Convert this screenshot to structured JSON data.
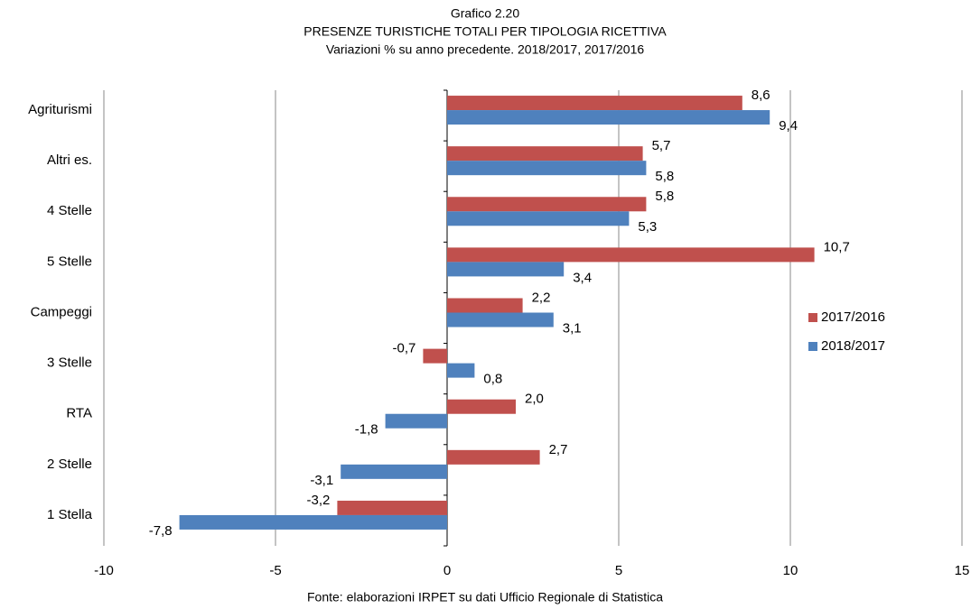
{
  "chart_data": {
    "type": "hbar",
    "chart_number": "Grafico 2.20",
    "title": "PRESENZE TURISTICHE TOTALI PER TIPOLOGIA RICETTIVA",
    "subtitle": "Variazioni % su anno precedente. 2018/2017, 2017/2016",
    "source": "Fonte: elaborazioni IRPET su dati Ufficio Regionale di Statistica",
    "categories": [
      "Agriturismi",
      "Altri es.",
      "4 Stelle",
      "5 Stelle",
      "Campeggi",
      "3 Stelle",
      "RTA",
      "2 Stelle",
      "1 Stella"
    ],
    "series": [
      {
        "name": "2017/2016",
        "color": "#c0504d",
        "values": [
          8.6,
          5.7,
          5.8,
          10.7,
          2.2,
          -0.7,
          2.0,
          2.7,
          -3.2
        ],
        "value_labels": [
          "8,6",
          "5,7",
          "5,8",
          "10,7",
          "2,2",
          "-0,7",
          "2,0",
          "2,7",
          "-3,2"
        ]
      },
      {
        "name": "2018/2017",
        "color": "#4f81bd",
        "values": [
          9.4,
          5.8,
          5.3,
          3.4,
          3.1,
          0.8,
          -1.8,
          -3.1,
          -7.8
        ],
        "value_labels": [
          "9,4",
          "5,8",
          "5,3",
          "3,4",
          "3,1",
          "0,8",
          "-1,8",
          "-3,1",
          "-7,8"
        ]
      }
    ],
    "xlim": [
      -10,
      15
    ],
    "xticks": [
      -10,
      -5,
      0,
      5,
      10,
      15
    ],
    "grid": true,
    "legend": "right"
  }
}
